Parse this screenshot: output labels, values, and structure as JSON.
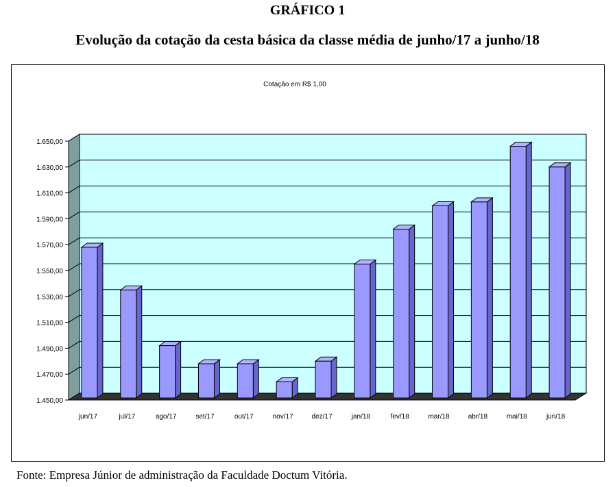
{
  "header": {
    "figure_label": "GRÁFICO 1",
    "title": "Evolução da cotação da cesta básica da classe média de junho/17 a junho/18"
  },
  "source_note": "Fonte: Empresa Júnior de administração da Faculdade Doctum Vitória.",
  "chart_data": {
    "type": "bar",
    "subtitle": "Cotação em R$ 1,00",
    "categories": [
      "jun/17",
      "jul/17",
      "ago/17",
      "set/17",
      "out/17",
      "nov/17",
      "dez/17",
      "jan/18",
      "fev/18",
      "mar/18",
      "abr/18",
      "mai/18",
      "jun/18"
    ],
    "values": [
      1568,
      1535,
      1492,
      1478,
      1478,
      1464,
      1480,
      1555,
      1582,
      1600,
      1603,
      1646,
      1630
    ],
    "ylim": [
      1450,
      1650
    ],
    "yticks": [
      1450,
      1470,
      1490,
      1510,
      1530,
      1550,
      1570,
      1590,
      1610,
      1630,
      1650
    ],
    "ytick_labels": [
      "1.450,00",
      "1.470,00",
      "1.490,00",
      "1.510,00",
      "1.530,00",
      "1.550,00",
      "1.570,00",
      "1.590,00",
      "1.610,00",
      "1.630,00",
      "1.650,00"
    ],
    "grid": true,
    "colors": {
      "plot_bg": "#ccffff",
      "bar_front": "#9999ff",
      "bar_side": "#6666cc",
      "bar_top": "#b3b3ff",
      "wall_left": "#7f9f9f",
      "floor": "#333333"
    }
  }
}
